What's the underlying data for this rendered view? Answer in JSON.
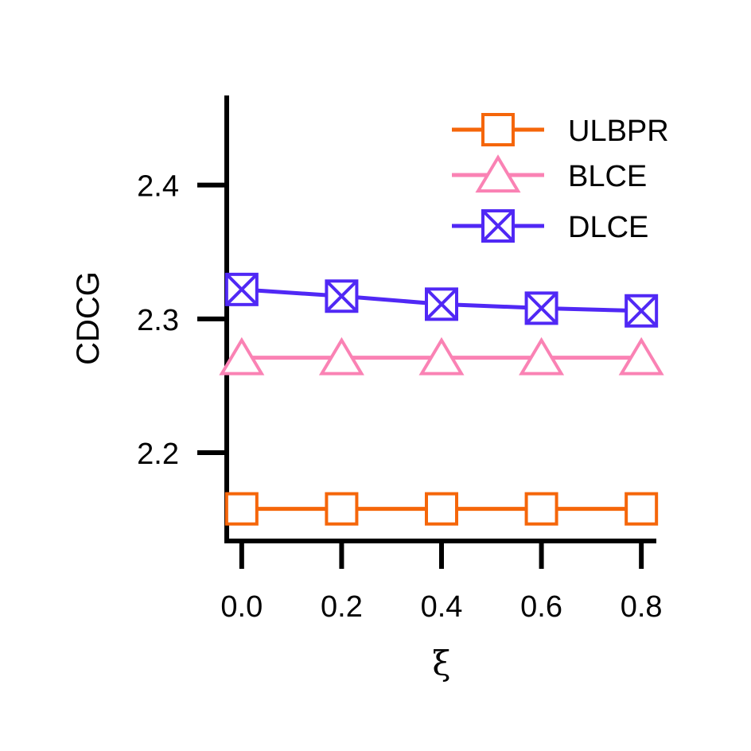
{
  "chart_data": {
    "type": "line",
    "title": "",
    "xlabel": "ξ",
    "ylabel": "CDCG",
    "x": [
      0.0,
      0.2,
      0.4,
      0.6,
      0.8
    ],
    "x_tick_labels": [
      "0.0",
      "0.2",
      "0.4",
      "0.6",
      "0.8"
    ],
    "y_ticks": [
      2.2,
      2.3,
      2.4
    ],
    "y_tick_labels": [
      "2.2",
      "2.3",
      "2.4"
    ],
    "xlim": [
      -0.03,
      0.83
    ],
    "ylim": [
      2.134,
      2.467
    ],
    "grid": false,
    "legend_position": "top-right",
    "series": [
      {
        "name": "ULBPR",
        "color": "#F5660A",
        "marker": "square",
        "values": [
          2.158,
          2.158,
          2.158,
          2.158,
          2.158
        ]
      },
      {
        "name": "BLCE",
        "color": "#FA82B4",
        "marker": "triangle",
        "values": [
          2.271,
          2.271,
          2.271,
          2.271,
          2.271
        ]
      },
      {
        "name": "DLCE",
        "color": "#5028F5",
        "marker": "square-x",
        "values": [
          2.322,
          2.317,
          2.311,
          2.308,
          2.306
        ]
      }
    ]
  }
}
